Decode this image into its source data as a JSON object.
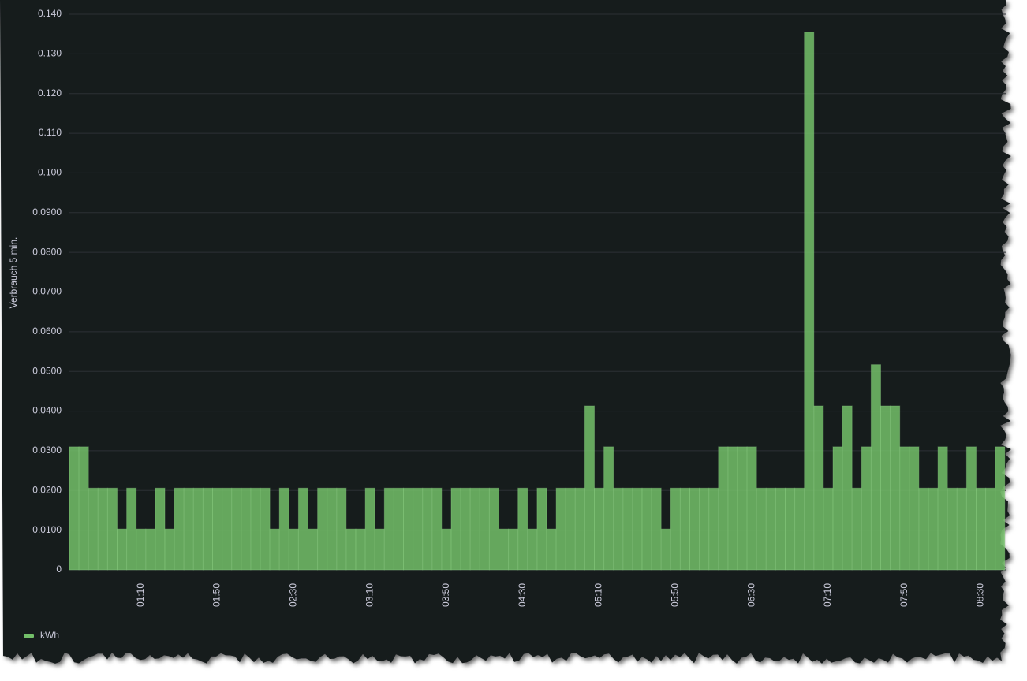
{
  "chart_data": {
    "type": "bar",
    "y_label": "Verbrauch 5 min.",
    "series": [
      {
        "name": "kWh",
        "color": "#73bf69",
        "values": [
          0.031,
          0.031,
          0.0206,
          0.0206,
          0.0206,
          0.0103,
          0.0206,
          0.0103,
          0.0103,
          0.0206,
          0.0103,
          0.0206,
          0.0206,
          0.0206,
          0.0206,
          0.0206,
          0.0206,
          0.0206,
          0.0206,
          0.0206,
          0.0206,
          0.0103,
          0.0206,
          0.0103,
          0.0206,
          0.0103,
          0.0206,
          0.0206,
          0.0206,
          0.0103,
          0.0103,
          0.0206,
          0.0103,
          0.0206,
          0.0206,
          0.0206,
          0.0206,
          0.0206,
          0.0206,
          0.0103,
          0.0206,
          0.0206,
          0.0206,
          0.0206,
          0.0206,
          0.0103,
          0.0103,
          0.0206,
          0.0103,
          0.0206,
          0.0103,
          0.0206,
          0.0206,
          0.0206,
          0.0413,
          0.0206,
          0.031,
          0.0206,
          0.0206,
          0.0206,
          0.0206,
          0.0206,
          0.0103,
          0.0206,
          0.0206,
          0.0206,
          0.0206,
          0.0206,
          0.031,
          0.031,
          0.031,
          0.031,
          0.0206,
          0.0206,
          0.0206,
          0.0206,
          0.0206,
          0.1355,
          0.0413,
          0.0206,
          0.031,
          0.0413,
          0.0206,
          0.031,
          0.0517,
          0.0413,
          0.0413,
          0.031,
          0.031,
          0.0206,
          0.0206,
          0.031,
          0.0206,
          0.0206,
          0.031,
          0.0206,
          0.0206,
          0.031
        ]
      }
    ],
    "categories": [
      null,
      null,
      null,
      null,
      null,
      null,
      null,
      "01:10",
      null,
      null,
      null,
      null,
      null,
      null,
      null,
      "01:50",
      null,
      null,
      null,
      null,
      null,
      null,
      null,
      "02:30",
      null,
      null,
      null,
      null,
      null,
      null,
      null,
      "03:10",
      null,
      null,
      null,
      null,
      null,
      null,
      null,
      "03:50",
      null,
      null,
      null,
      null,
      null,
      null,
      null,
      "04:30",
      null,
      null,
      null,
      null,
      null,
      null,
      null,
      "05:10",
      null,
      null,
      null,
      null,
      null,
      null,
      null,
      "05:50",
      null,
      null,
      null,
      null,
      null,
      null,
      null,
      "06:30",
      null,
      null,
      null,
      null,
      null,
      null,
      null,
      "07:10",
      null,
      null,
      null,
      null,
      null,
      null,
      null,
      "07:50",
      null,
      null,
      null,
      null,
      null,
      null,
      null,
      "08:30",
      null,
      null
    ],
    "ylim": [
      0,
      0.14
    ],
    "yticks": [
      0,
      {
        "value": 0.01,
        "label": "0.0100"
      },
      {
        "value": 0.02,
        "label": "0.0200"
      },
      {
        "value": 0.03,
        "label": "0.0300"
      },
      {
        "value": 0.04,
        "label": "0.0400"
      },
      {
        "value": 0.05,
        "label": "0.0500"
      },
      {
        "value": 0.06,
        "label": "0.0600"
      },
      {
        "value": 0.07,
        "label": "0.0700"
      },
      {
        "value": 0.08,
        "label": "0.0800"
      },
      {
        "value": 0.09,
        "label": "0.0900"
      },
      {
        "value": 0.1,
        "label": "0.100"
      },
      {
        "value": 0.11,
        "label": "0.110"
      },
      {
        "value": 0.12,
        "label": "0.120"
      },
      {
        "value": 0.13,
        "label": "0.130"
      },
      {
        "value": 0.14,
        "label": "0.140"
      }
    ],
    "grid": true,
    "legend": "bottom-left"
  }
}
